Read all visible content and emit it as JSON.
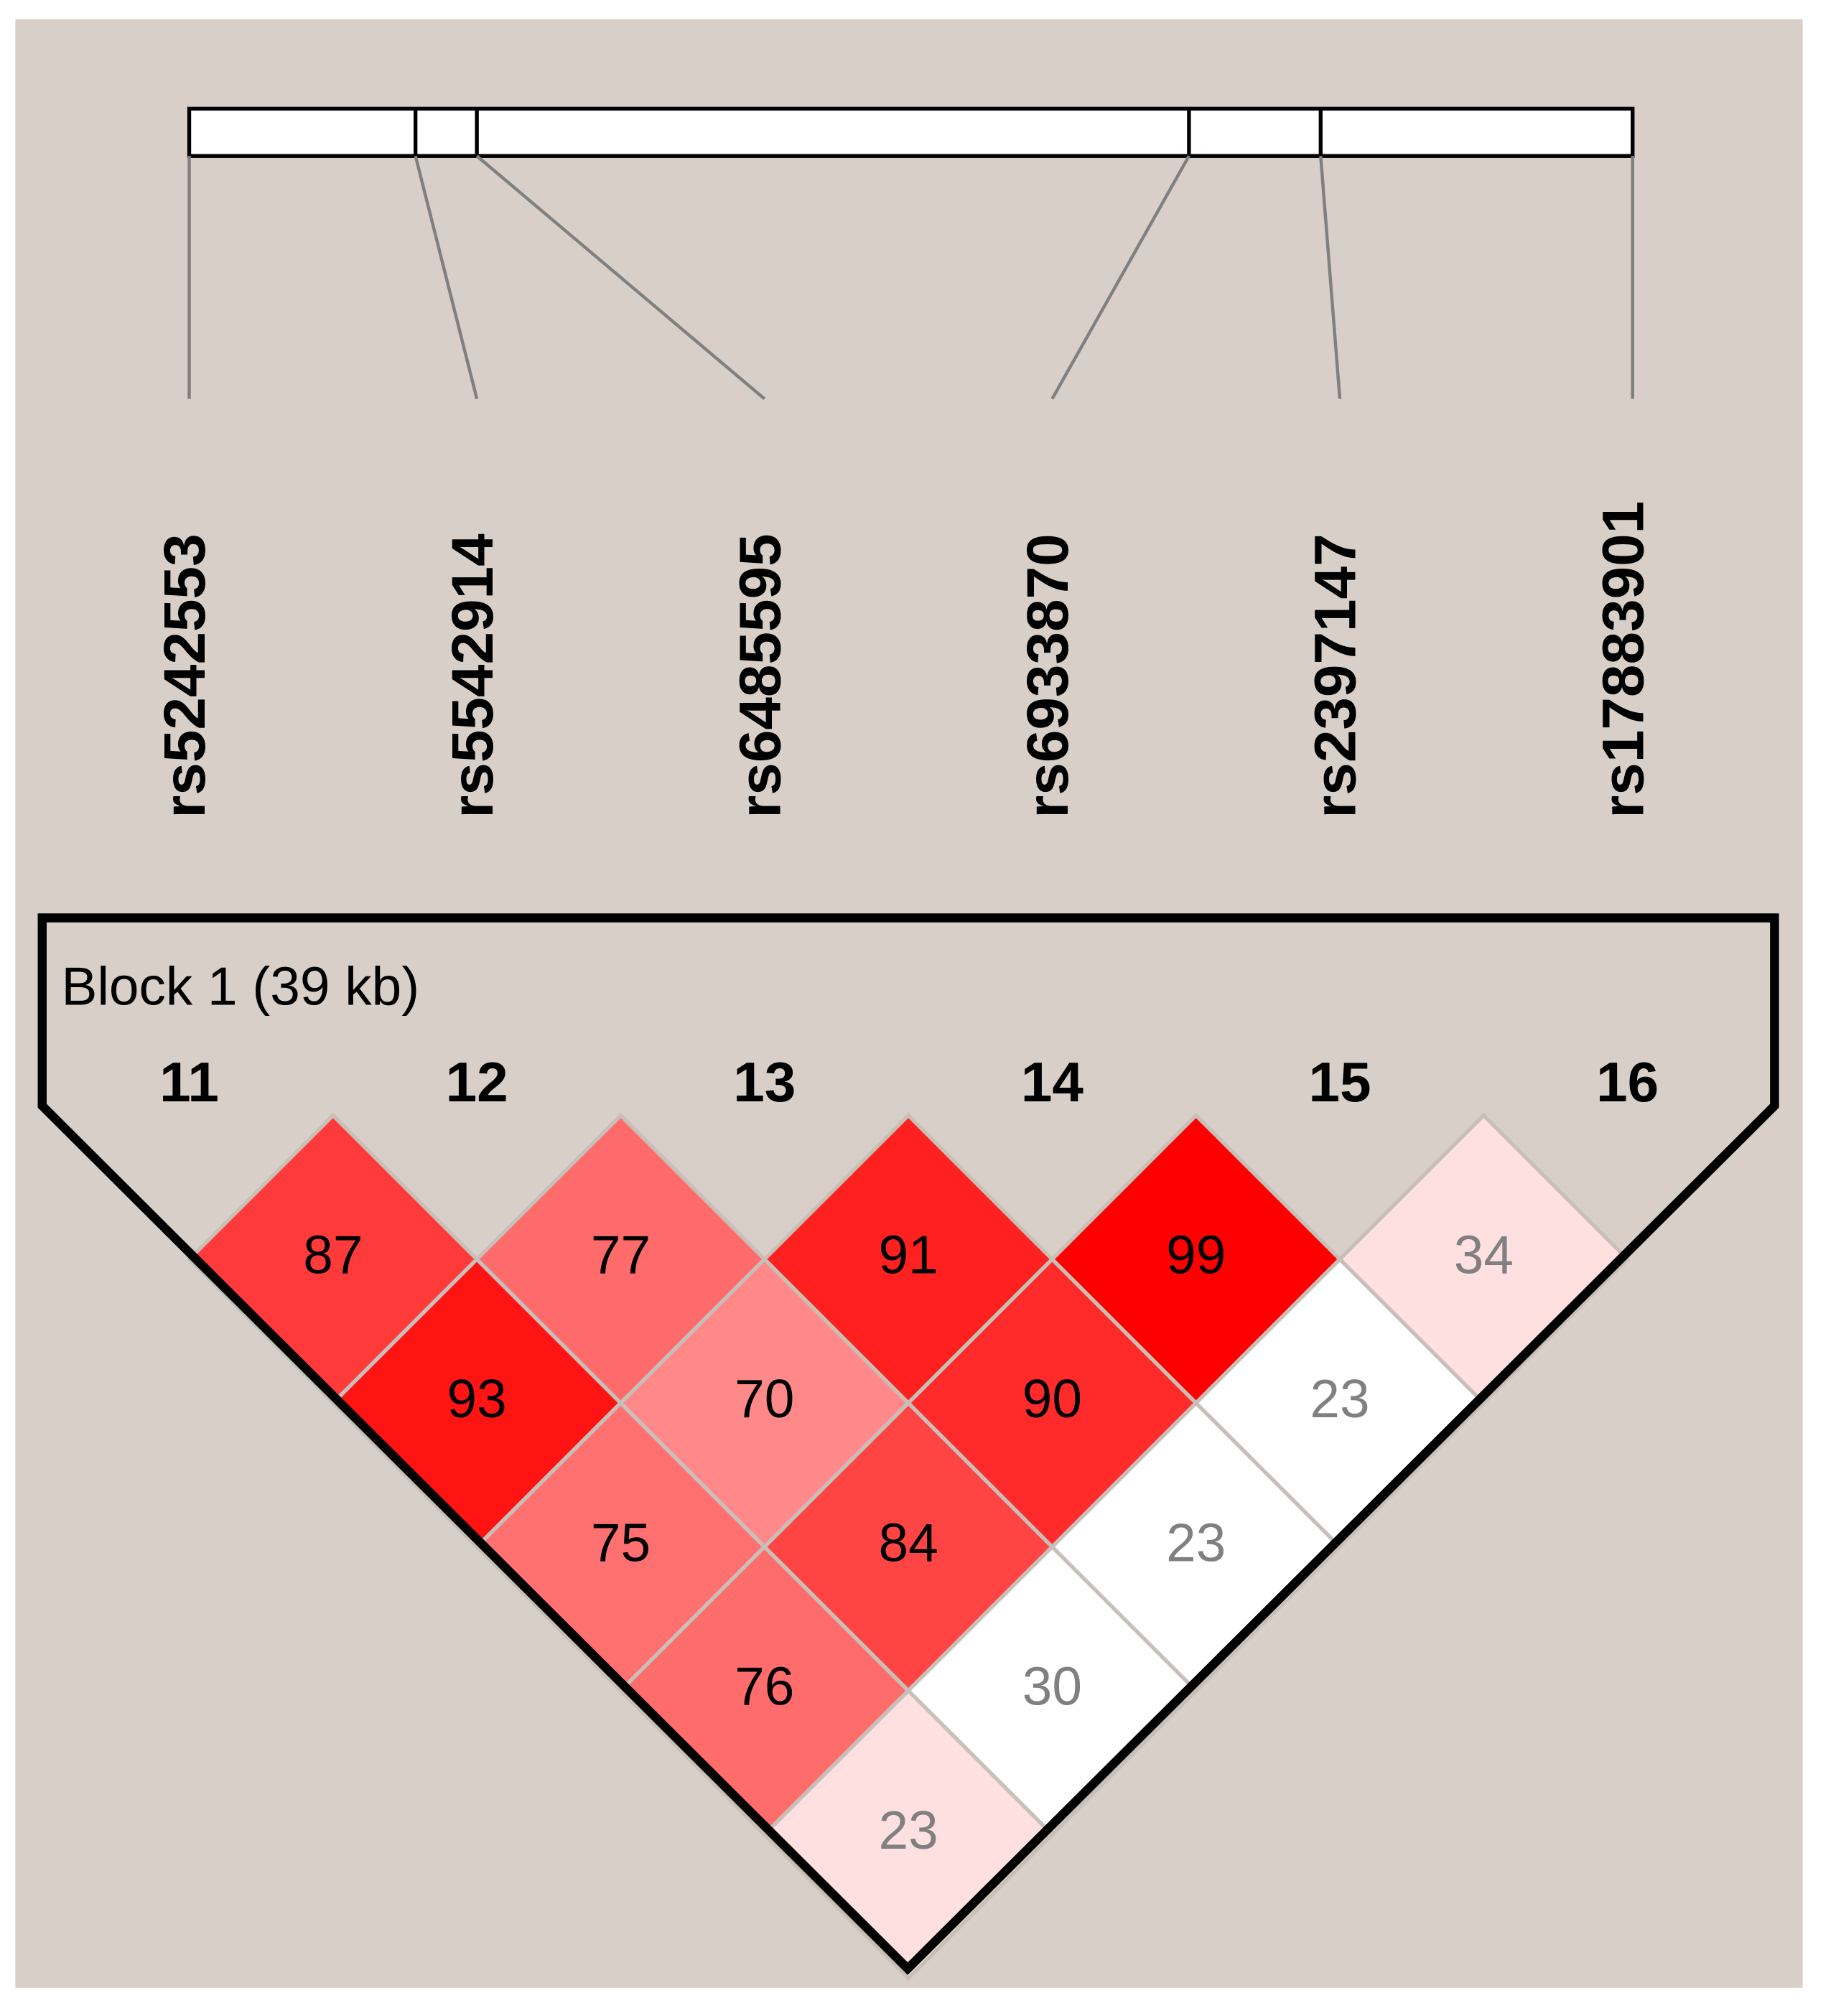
{
  "markers": {
    "names": [
      "rs5242553",
      "rs5542914",
      "rs6485595",
      "rs6933870",
      "rs2397147",
      "rs17883901"
    ],
    "numbers": [
      11,
      12,
      13,
      14,
      15,
      16
    ]
  },
  "block": {
    "label": "Block 1 (39 kb)"
  },
  "ld": {
    "rows": [
      [
        87,
        93,
        75,
        76,
        23
      ],
      [
        77,
        70,
        84,
        30
      ],
      [
        91,
        90,
        23
      ],
      [
        99,
        23
      ],
      [
        34
      ]
    ],
    "colors": [
      [
        "#ff3a3a",
        "#ff1414",
        "#ff7070",
        "#ff6c6c",
        "#ffe0e0"
      ],
      [
        "#ff6a6a",
        "#ff8888",
        "#ff4444",
        "#ffffff"
      ],
      [
        "#ff2020",
        "#ff2a2a",
        "#ffffff"
      ],
      [
        "#ff0000",
        "#ffffff"
      ],
      [
        "#ffe0e0"
      ]
    ]
  }
}
